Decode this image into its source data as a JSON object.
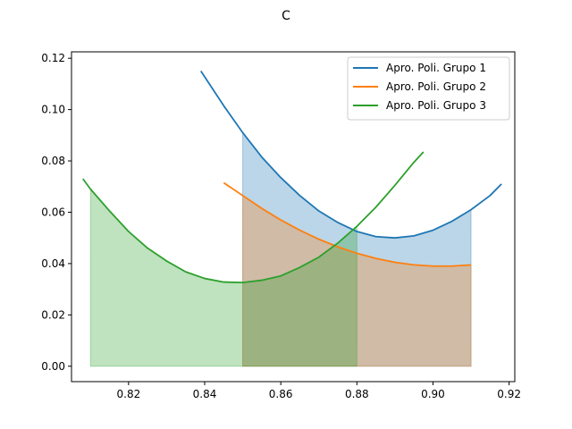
{
  "chart_data": {
    "type": "line",
    "title": "C",
    "xlabel": "",
    "ylabel": "",
    "xlim": [
      0.805,
      0.9215
    ],
    "ylim": [
      -0.006,
      0.1225
    ],
    "xticks": [
      0.82,
      0.84,
      0.86,
      0.88,
      0.9,
      0.92
    ],
    "yticks": [
      0.0,
      0.02,
      0.04,
      0.06,
      0.08,
      0.1,
      0.12
    ],
    "xtick_labels": [
      "0.82",
      "0.84",
      "0.86",
      "0.88",
      "0.90",
      "0.92"
    ],
    "ytick_labels": [
      "0.00",
      "0.02",
      "0.04",
      "0.06",
      "0.08",
      "0.10",
      "0.12"
    ],
    "grid": false,
    "legend_position": "top-right",
    "series": [
      {
        "name": "Apro. Poli. Grupo 1",
        "color": "#1f77b4",
        "x": [
          0.839,
          0.845,
          0.85,
          0.855,
          0.86,
          0.865,
          0.87,
          0.875,
          0.88,
          0.885,
          0.89,
          0.895,
          0.9,
          0.905,
          0.91,
          0.915,
          0.918
        ],
        "y": [
          0.115,
          0.1015,
          0.091,
          0.0815,
          0.0735,
          0.0665,
          0.0605,
          0.056,
          0.0525,
          0.0505,
          0.05,
          0.0508,
          0.053,
          0.0565,
          0.061,
          0.0665,
          0.071
        ],
        "fill_range": [
          0.85,
          0.91
        ]
      },
      {
        "name": "Apro. Poli. Grupo 2",
        "color": "#ff7f0e",
        "x": [
          0.845,
          0.85,
          0.855,
          0.86,
          0.865,
          0.87,
          0.875,
          0.88,
          0.885,
          0.89,
          0.895,
          0.9,
          0.905,
          0.91
        ],
        "y": [
          0.0715,
          0.0665,
          0.0615,
          0.057,
          0.053,
          0.0495,
          0.0465,
          0.044,
          0.042,
          0.0405,
          0.0395,
          0.039,
          0.039,
          0.0395
        ],
        "fill_range": [
          0.85,
          0.91
        ]
      },
      {
        "name": "Apro. Poli. Grupo 3",
        "color": "#2ca02c",
        "x": [
          0.808,
          0.81,
          0.815,
          0.82,
          0.825,
          0.83,
          0.835,
          0.84,
          0.845,
          0.85,
          0.855,
          0.86,
          0.865,
          0.87,
          0.875,
          0.88,
          0.885,
          0.89,
          0.895,
          0.8975
        ],
        "y": [
          0.073,
          0.069,
          0.0605,
          0.0525,
          0.046,
          0.041,
          0.0368,
          0.0342,
          0.0328,
          0.0326,
          0.0335,
          0.0352,
          0.0385,
          0.0425,
          0.048,
          0.0545,
          0.062,
          0.0705,
          0.0795,
          0.0835
        ],
        "fill_range": [
          0.81,
          0.88
        ]
      }
    ]
  }
}
